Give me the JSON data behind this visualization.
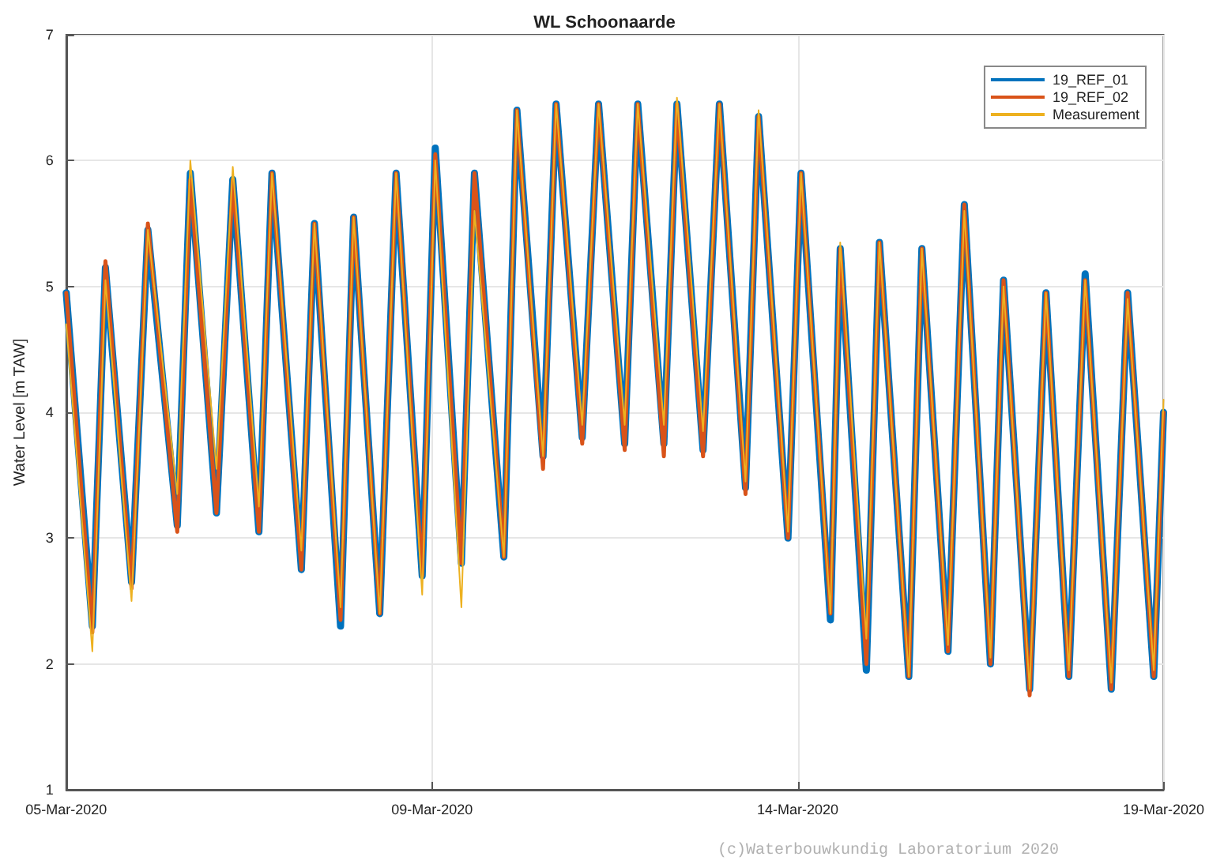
{
  "chart_data": {
    "type": "line",
    "title": "WL Schoonaarde",
    "ylabel": "Water Level [m TAW]",
    "x": [
      "2020-03-05T00:00",
      "2020-03-05T08:00",
      "2020-03-05T12:00",
      "2020-03-05T20:00",
      "2020-03-06T01:00",
      "2020-03-06T10:00",
      "2020-03-06T14:00",
      "2020-03-06T22:00",
      "2020-03-07T03:00",
      "2020-03-07T11:00",
      "2020-03-07T15:00",
      "2020-03-08T00:00",
      "2020-03-08T04:00",
      "2020-03-08T12:00",
      "2020-03-08T16:00",
      "2020-03-09T00:00",
      "2020-03-09T05:00",
      "2020-03-09T13:00",
      "2020-03-09T17:00",
      "2020-03-10T01:00",
      "2020-03-10T05:00",
      "2020-03-10T14:00",
      "2020-03-10T18:00",
      "2020-03-11T02:00",
      "2020-03-11T06:00",
      "2020-03-11T14:00",
      "2020-03-11T19:00",
      "2020-03-12T03:00",
      "2020-03-12T07:00",
      "2020-03-12T15:00",
      "2020-03-12T19:00",
      "2020-03-13T03:00",
      "2020-03-13T08:00",
      "2020-03-13T16:00",
      "2020-03-13T20:00",
      "2020-03-14T05:00",
      "2020-03-14T09:00",
      "2020-03-14T18:00",
      "2020-03-14T21:00",
      "2020-03-15T05:00",
      "2020-03-15T09:00",
      "2020-03-15T18:00",
      "2020-03-15T22:00",
      "2020-03-16T06:00",
      "2020-03-16T11:00",
      "2020-03-16T19:00",
      "2020-03-16T23:00",
      "2020-03-17T07:00",
      "2020-03-17T12:00",
      "2020-03-17T19:00",
      "2020-03-18T00:00",
      "2020-03-18T08:00",
      "2020-03-18T13:00",
      "2020-03-18T21:00",
      "2020-03-19T00:00"
    ],
    "series": [
      {
        "name": "19_REF_01",
        "color": "#0072bd",
        "values": [
          4.95,
          2.3,
          5.15,
          2.65,
          5.45,
          3.1,
          5.9,
          3.2,
          5.85,
          3.05,
          5.9,
          2.75,
          5.5,
          2.3,
          5.55,
          2.4,
          5.9,
          2.7,
          6.1,
          2.8,
          5.9,
          2.85,
          6.4,
          3.65,
          6.45,
          3.8,
          6.45,
          3.75,
          6.45,
          3.75,
          6.45,
          3.7,
          6.45,
          3.4,
          6.35,
          3.0,
          5.9,
          2.35,
          5.3,
          1.95,
          5.35,
          1.9,
          5.3,
          2.1,
          5.65,
          2.0,
          5.05,
          1.8,
          4.95,
          1.9,
          5.1,
          1.8,
          4.95,
          1.9,
          4.0
        ]
      },
      {
        "name": "19_REF_02",
        "color": "#d95319",
        "values": [
          4.95,
          2.25,
          5.2,
          2.6,
          5.5,
          3.05,
          5.85,
          3.2,
          5.85,
          3.05,
          5.9,
          2.75,
          5.5,
          2.35,
          5.55,
          2.4,
          5.9,
          2.7,
          6.05,
          2.8,
          5.9,
          2.85,
          6.4,
          3.55,
          6.45,
          3.75,
          6.45,
          3.7,
          6.45,
          3.65,
          6.45,
          3.65,
          6.45,
          3.35,
          6.35,
          3.0,
          5.9,
          2.4,
          5.3,
          2.0,
          5.35,
          1.9,
          5.3,
          2.1,
          5.65,
          2.0,
          5.05,
          1.75,
          4.95,
          1.9,
          5.05,
          1.8,
          4.95,
          1.9,
          4.0
        ]
      },
      {
        "name": "Measurement",
        "color": "#edb120",
        "values": [
          4.7,
          2.1,
          5.05,
          2.5,
          5.45,
          3.35,
          6.0,
          3.55,
          5.95,
          3.25,
          5.9,
          2.9,
          5.5,
          2.45,
          5.55,
          2.4,
          5.9,
          2.55,
          6.0,
          2.45,
          5.6,
          2.85,
          6.4,
          3.65,
          6.45,
          3.9,
          6.45,
          3.9,
          6.45,
          3.9,
          6.5,
          3.85,
          6.45,
          3.45,
          6.4,
          3.05,
          5.9,
          2.4,
          5.35,
          2.2,
          5.35,
          1.9,
          5.3,
          2.15,
          5.6,
          2.05,
          5.0,
          1.8,
          4.95,
          1.95,
          5.05,
          1.85,
          4.9,
          1.95,
          4.1
        ]
      }
    ],
    "xlim": [
      "2020-03-05",
      "2020-03-19"
    ],
    "xticks": [
      {
        "value": "2020-03-05",
        "label": "05-Mar-2020"
      },
      {
        "value": "2020-03-09T16:00",
        "label": "09-Mar-2020"
      },
      {
        "value": "2020-03-14T08:00",
        "label": "14-Mar-2020"
      },
      {
        "value": "2020-03-19",
        "label": "19-Mar-2020"
      }
    ],
    "ylim": [
      1,
      7
    ],
    "yticks": [
      1,
      2,
      3,
      4,
      5,
      6,
      7
    ],
    "grid": true,
    "legend": "top right",
    "marker": "none",
    "line_style": "solid",
    "annotations": [
      "(c)Waterbouwkundig Laboratorium 2020"
    ]
  }
}
